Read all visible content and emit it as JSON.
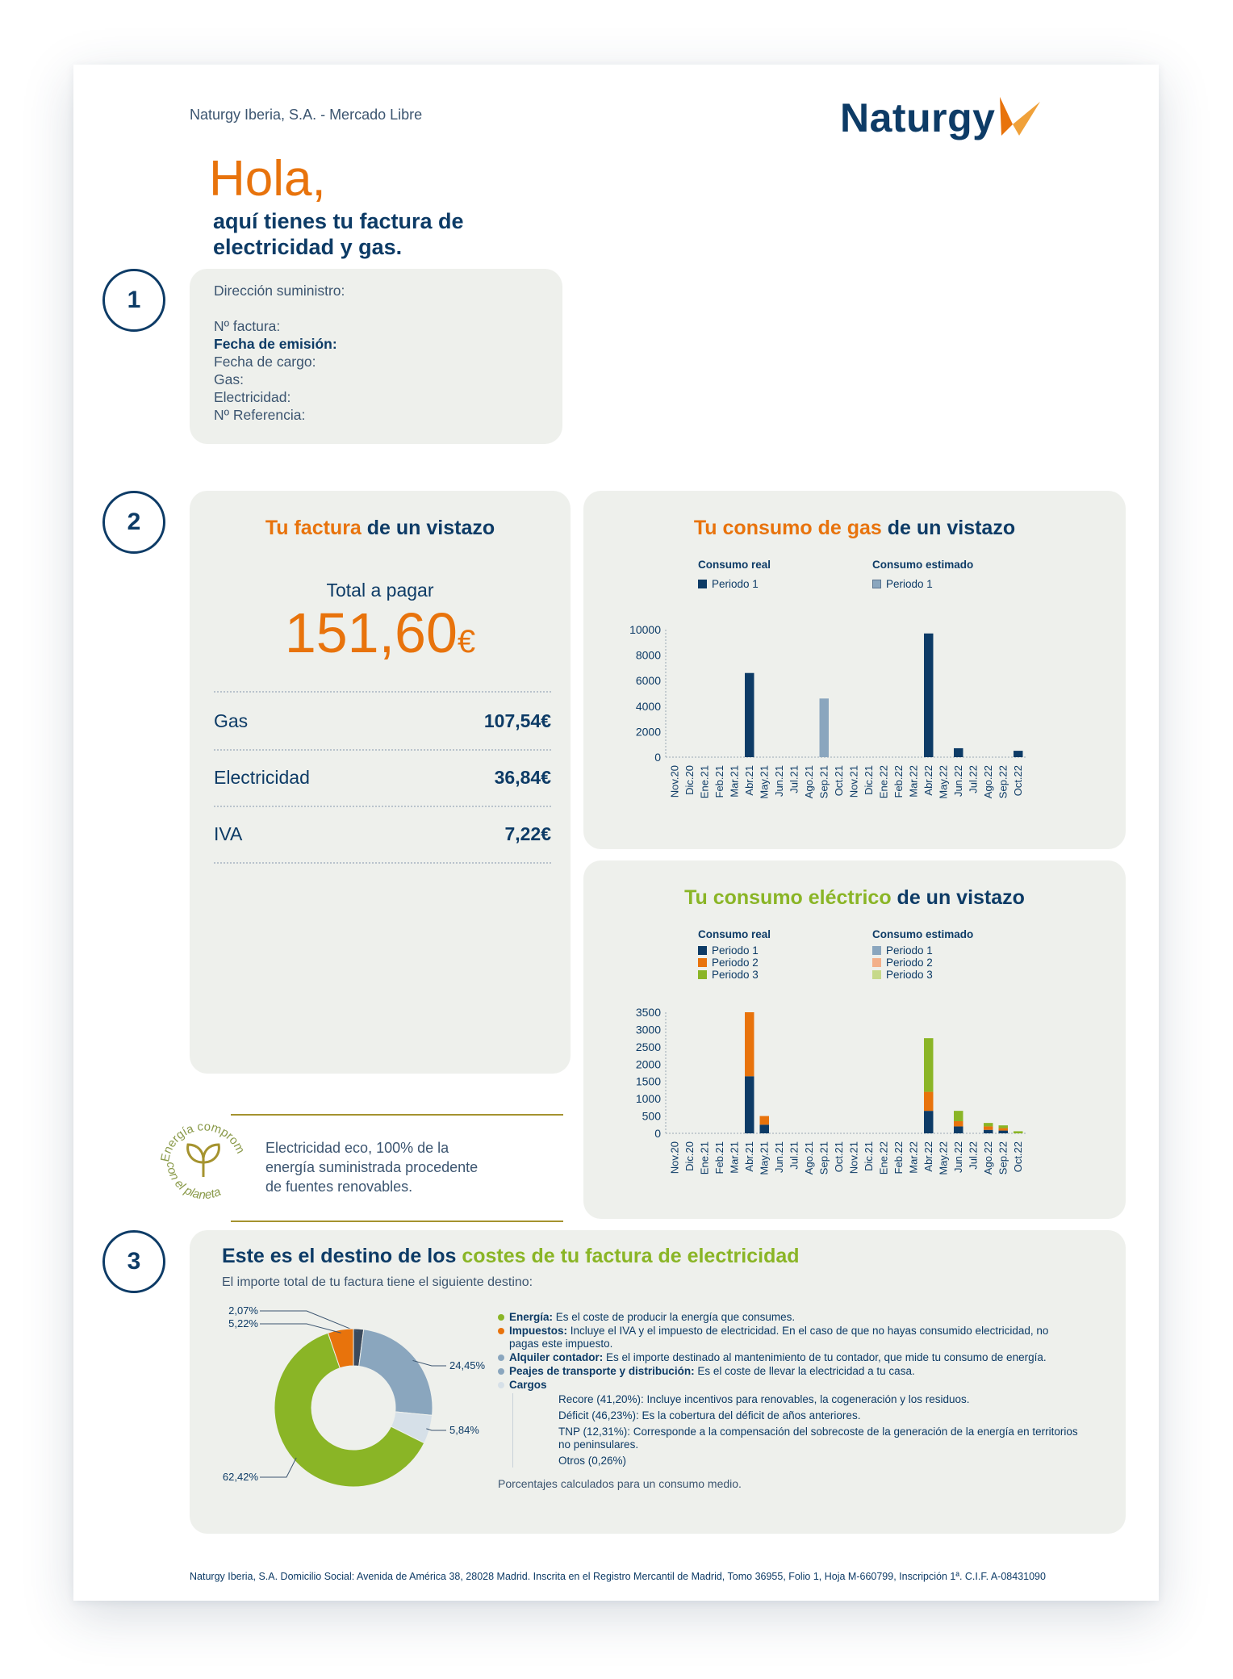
{
  "header": {
    "company_line": "Naturgy Iberia, S.A. - Mercado Libre",
    "logo_text": "Naturgy"
  },
  "greeting": {
    "hello": "Hola,",
    "subtitle_line1": "aquí tienes tu factura de",
    "subtitle_line2": "electricidad y gas."
  },
  "sections": {
    "one": "1",
    "two": "2",
    "three": "3"
  },
  "info_card": {
    "address_label": "Dirección suministro:",
    "invoice_label": "Nº factura:",
    "issue_date_label": "Fecha de emisión:",
    "charge_date_label": "Fecha de cargo:",
    "gas_label": "Gas:",
    "electricity_label": "Electricidad:",
    "reference_label": "Nº Referencia:"
  },
  "summary": {
    "title_a": "Tu factura",
    "title_b": " de un vistazo",
    "total_label": "Total a pagar",
    "total_value": "151,60",
    "currency": "€",
    "lines": [
      {
        "label": "Gas",
        "value": "107,54€"
      },
      {
        "label": "Electricidad",
        "value": "36,84€"
      },
      {
        "label": "IVA",
        "value": "7,22€"
      }
    ]
  },
  "eco": {
    "badge_top": "Energía comprometida",
    "badge_bottom": "con el planeta",
    "text_line1": "Electricidad eco, 100% de la",
    "text_line2": "energía suministrada procedente",
    "text_line3": "de fuentes renovables."
  },
  "gas_chart": {
    "title_a": "Tu consumo de gas",
    "title_b": " de un vistazo",
    "legend_real": "Consumo real",
    "legend_est": "Consumo estimado",
    "legend_p1": "Periodo 1",
    "legend_p1_est": "Periodo 1"
  },
  "elec_chart": {
    "title_a": "Tu consumo eléctrico",
    "title_b": " de un vistazo",
    "legend_real": "Consumo real",
    "legend_est": "Consumo estimado",
    "p1": "Periodo 1",
    "p2": "Periodo 2",
    "p3": "Periodo 3",
    "p1e": "Periodo 1",
    "p2e": "Periodo 2",
    "p3e": "Periodo 3"
  },
  "chart_data": [
    {
      "type": "bar",
      "title": "Tu consumo de gas de un vistazo",
      "categories": [
        "Nov.20",
        "Dic.20",
        "Ene.21",
        "Feb.21",
        "Mar.21",
        "Abr.21",
        "May.21",
        "Jun.21",
        "Jul.21",
        "Ago.21",
        "Sep.21",
        "Oct.21",
        "Nov.21",
        "Dic.21",
        "Ene.22",
        "Feb.22",
        "Mar.22",
        "Abr.22",
        "May.22",
        "Jun.22",
        "Jul.22",
        "Ago.22",
        "Sep.22",
        "Oct.22"
      ],
      "yticks": [
        "0",
        "2000",
        "4000",
        "6000",
        "8000",
        "10000"
      ],
      "ylim": [
        0,
        10000
      ],
      "series": [
        {
          "name": "Periodo 1 (real)",
          "color": "#0d3b66",
          "values": [
            0,
            0,
            0,
            0,
            0,
            6600,
            0,
            0,
            0,
            0,
            0,
            0,
            0,
            0,
            0,
            0,
            0,
            9700,
            0,
            700,
            0,
            0,
            0,
            500
          ]
        },
        {
          "name": "Periodo 1 (estimado)",
          "color": "#8aa6be",
          "values": [
            0,
            0,
            0,
            0,
            0,
            0,
            0,
            0,
            0,
            0,
            4600,
            0,
            0,
            0,
            0,
            0,
            0,
            0,
            0,
            0,
            0,
            0,
            0,
            0
          ]
        }
      ]
    },
    {
      "type": "bar",
      "title": "Tu consumo eléctrico de un vistazo",
      "categories": [
        "Nov.20",
        "Dic.20",
        "Ene.21",
        "Feb.21",
        "Mar.21",
        "Abr.21",
        "May.21",
        "Jun.21",
        "Jul.21",
        "Ago.21",
        "Sep.21",
        "Oct.21",
        "Nov.21",
        "Dic.21",
        "Ene.22",
        "Feb.22",
        "Mar.22",
        "Abr.22",
        "May.22",
        "Jun.22",
        "Jul.22",
        "Ago.22",
        "Sep.22",
        "Oct.22"
      ],
      "yticks": [
        "0",
        "500",
        "1000",
        "1500",
        "2000",
        "2500",
        "3000",
        "3500"
      ],
      "ylim": [
        0,
        3500
      ],
      "stacked": true,
      "series": [
        {
          "name": "Periodo 1",
          "color": "#0d3b66",
          "values": [
            0,
            0,
            0,
            0,
            0,
            1650,
            250,
            0,
            0,
            0,
            0,
            0,
            0,
            0,
            0,
            0,
            0,
            650,
            0,
            200,
            0,
            100,
            80,
            0
          ]
        },
        {
          "name": "Periodo 2",
          "color": "#e8730c",
          "values": [
            0,
            0,
            0,
            0,
            0,
            1850,
            250,
            0,
            0,
            0,
            0,
            0,
            0,
            0,
            0,
            0,
            0,
            550,
            0,
            150,
            0,
            100,
            70,
            0
          ]
        },
        {
          "name": "Periodo 3",
          "color": "#8ab526",
          "values": [
            0,
            0,
            0,
            0,
            0,
            0,
            0,
            0,
            0,
            0,
            0,
            0,
            0,
            0,
            0,
            0,
            0,
            1550,
            0,
            300,
            0,
            100,
            80,
            60
          ]
        }
      ]
    },
    {
      "type": "pie",
      "title": "Este es el destino de los costes de tu factura de electricidad",
      "slices": [
        {
          "label": "Cargos",
          "value": 2.07,
          "display": "2,07%",
          "color": "#3b4a5c"
        },
        {
          "label": "Alquiler contador",
          "value": 24.45,
          "display": "24,45%",
          "color": "#8aa6be"
        },
        {
          "label": "Peajes de transporte y distribución",
          "value": 5.84,
          "display": "5,84%",
          "color": "#d6e0e8"
        },
        {
          "label": "Energía",
          "value": 62.42,
          "display": "62,42%",
          "color": "#8ab526"
        },
        {
          "label": "Impuestos",
          "value": 5.22,
          "display": "5,22%",
          "color": "#e8730c"
        }
      ]
    }
  ],
  "costs": {
    "title_a": "Este es el destino de los ",
    "title_b": "costes de tu factura de electricidad",
    "intro": "El importe total de tu factura tiene el siguiente destino:",
    "legend": [
      {
        "bold": "Energía:",
        "text": " Es el coste de producir la energía que consumes.",
        "color": "#8ab526"
      },
      {
        "bold": "Impuestos:",
        "text": " Incluye el IVA y el impuesto de electricidad. En el caso de que no hayas consumido electricidad, no pagas este impuesto.",
        "color": "#e8730c"
      },
      {
        "bold": "Alquiler contador:",
        "text": " Es el importe destinado al mantenimiento de tu contador, que mide tu consumo de energía.",
        "color": "#8aa6be"
      },
      {
        "bold": "Peajes de transporte y distribución:",
        "text": " Es el coste de llevar la electricidad a tu casa.",
        "color": "#8aa6be"
      },
      {
        "bold": "Cargos",
        "text": "",
        "color": "#d6e0e8"
      }
    ],
    "sub": [
      "Recore (41,20%): Incluye incentivos para renovables, la cogeneración y los residuos.",
      "Déficit (46,23%): Es la cobertura del déficit de años anteriores.",
      "TNP (12,31%): Corresponde a la compensación del sobrecoste de la generación de la energía en territorios no peninsulares.",
      "Otros (0,26%)"
    ],
    "note": "Porcentajes calculados para un consumo medio."
  },
  "footer": {
    "text": "Naturgy Iberia, S.A. Domicilio Social: Avenida de América 38, 28028 Madrid. Inscrita en el Registro Mercantil de Madrid, Tomo 36955, Folio 1, Hoja M-660799, Inscripción 1ª. C.I.F. A-08431090"
  }
}
